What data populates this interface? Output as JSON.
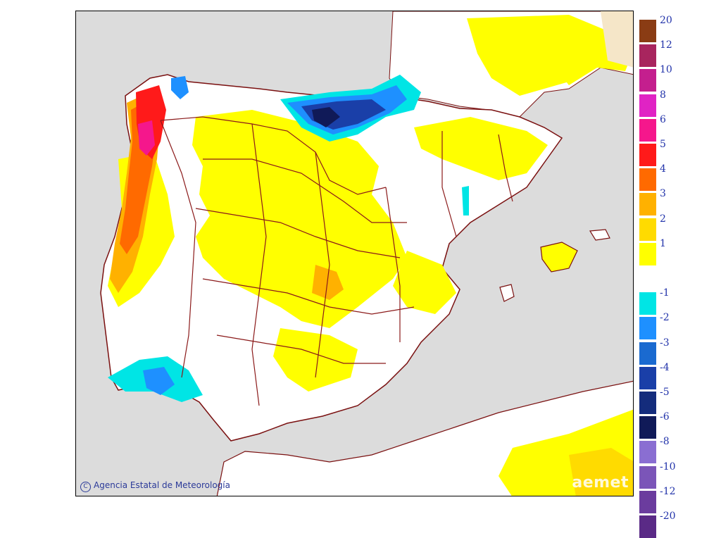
{
  "credit": {
    "copyright_symbol": "C",
    "text": "Agencia Estatal de Meteorología"
  },
  "logo": {
    "text": "aemet"
  },
  "legend": {
    "items": [
      {
        "label": "20",
        "color": "#8a3c14"
      },
      {
        "label": "12",
        "color": "#a8255e"
      },
      {
        "label": "10",
        "color": "#c41f8e"
      },
      {
        "label": "8",
        "color": "#e023c4"
      },
      {
        "label": "6",
        "color": "#f5178c"
      },
      {
        "label": "5",
        "color": "#ff1a1a"
      },
      {
        "label": "4",
        "color": "#ff6a00"
      },
      {
        "label": "3",
        "color": "#ffb100"
      },
      {
        "label": "2",
        "color": "#ffdb00"
      },
      {
        "label": "1",
        "color": "#ffff00"
      },
      {
        "label": "",
        "color": "#ffffff"
      },
      {
        "label": "-1",
        "color": "#00e5e5"
      },
      {
        "label": "-2",
        "color": "#1e90ff"
      },
      {
        "label": "-3",
        "color": "#1a6ad0"
      },
      {
        "label": "-4",
        "color": "#1a3fa8"
      },
      {
        "label": "-5",
        "color": "#142c7c"
      },
      {
        "label": "-6",
        "color": "#101a58"
      },
      {
        "label": "-8",
        "color": "#8a6ed2"
      },
      {
        "label": "-10",
        "color": "#7b55b8"
      },
      {
        "label": "-12",
        "color": "#6b3c9e"
      },
      {
        "label": "-20",
        "color": "#5a2a86"
      }
    ]
  },
  "map_colors": {
    "sea": "#dcdcdc",
    "land": "#ffffff",
    "border": "#8b1a1a",
    "coast": "#7a1010"
  }
}
